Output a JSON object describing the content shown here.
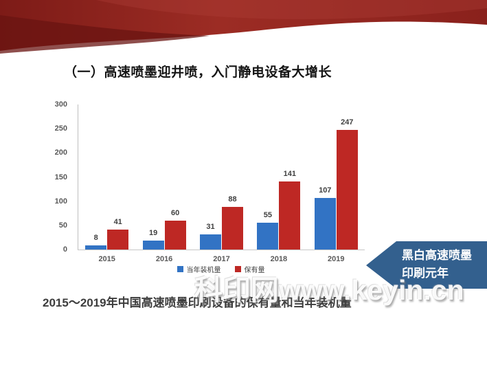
{
  "slide": {
    "title": "（一）高速喷墨迎井喷，入门静电设备大增长",
    "caption": "2015～2019年中国高速喷墨印刷设备的保有量和当年装机量",
    "watermark": "科印网www.keyin.cn",
    "callout": {
      "line1": "黑白高速喷墨",
      "line2": "印刷元年",
      "color": "#33608E"
    },
    "header_colors": {
      "ribbon_main": "#8f241e",
      "ribbon_dark": "#6a1411",
      "ribbon_highlight": "#b04038"
    }
  },
  "chart_data": {
    "type": "bar",
    "categories": [
      "2015",
      "2016",
      "2017",
      "2018",
      "2019"
    ],
    "series": [
      {
        "name": "当年装机量",
        "color": "#3273C4",
        "values": [
          8,
          19,
          31,
          55,
          107
        ]
      },
      {
        "name": "保有量",
        "color": "#BE2824",
        "values": [
          41,
          60,
          88,
          141,
          247
        ]
      }
    ],
    "title": "",
    "xlabel": "",
    "ylabel": "",
    "ylim": [
      0,
      300
    ],
    "yticks": [
      0,
      50,
      100,
      150,
      200,
      250,
      300
    ],
    "grid": false,
    "legend_position": "bottom",
    "axis_color": "#bfbfbf",
    "tick_label_color": "#595959",
    "value_label_color": "#3f3f3f"
  }
}
